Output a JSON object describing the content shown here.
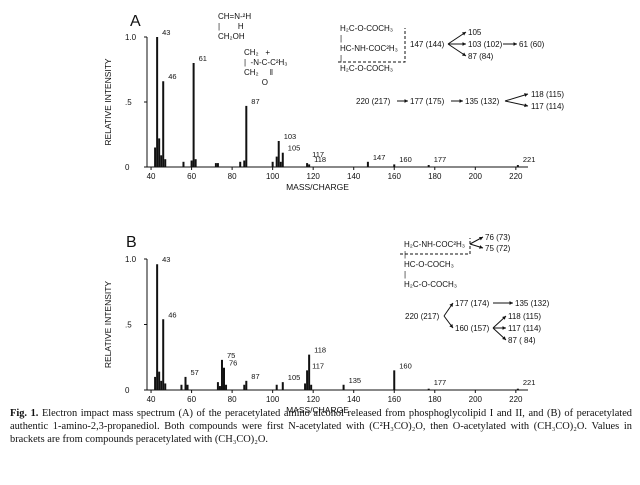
{
  "chart_data": [
    {
      "type": "bar",
      "panel_label": "A",
      "xlabel": "MASS/CHARGE",
      "ylabel": "RELATIVE INTENSITY",
      "xlim": [
        38,
        226
      ],
      "ylim": [
        0,
        1.0
      ],
      "x_ticks": [
        "40",
        "60",
        "80",
        "100",
        "120",
        "140",
        "160",
        "180",
        "200",
        "220"
      ],
      "y_ticks": [
        "0",
        ".5",
        "1.0"
      ],
      "peaks": [
        {
          "mz": 42,
          "intensity": 0.15
        },
        {
          "mz": 43,
          "intensity": 1.0
        },
        {
          "mz": 44,
          "intensity": 0.22
        },
        {
          "mz": 45,
          "intensity": 0.09
        },
        {
          "mz": 46,
          "intensity": 0.66
        },
        {
          "mz": 47,
          "intensity": 0.06
        },
        {
          "mz": 56,
          "intensity": 0.04
        },
        {
          "mz": 60,
          "intensity": 0.05
        },
        {
          "mz": 61,
          "intensity": 0.8
        },
        {
          "mz": 62,
          "intensity": 0.06
        },
        {
          "mz": 72,
          "intensity": 0.03
        },
        {
          "mz": 73,
          "intensity": 0.03
        },
        {
          "mz": 84,
          "intensity": 0.04
        },
        {
          "mz": 86,
          "intensity": 0.05
        },
        {
          "mz": 87,
          "intensity": 0.47
        },
        {
          "mz": 100,
          "intensity": 0.04
        },
        {
          "mz": 102,
          "intensity": 0.08
        },
        {
          "mz": 103,
          "intensity": 0.2
        },
        {
          "mz": 104,
          "intensity": 0.04
        },
        {
          "mz": 105,
          "intensity": 0.11
        },
        {
          "mz": 117,
          "intensity": 0.03
        },
        {
          "mz": 118,
          "intensity": 0.02
        },
        {
          "mz": 147,
          "intensity": 0.04
        },
        {
          "mz": 160,
          "intensity": 0.02
        },
        {
          "mz": 177,
          "intensity": 0.015
        },
        {
          "mz": 221,
          "intensity": 0.015
        }
      ],
      "peak_labels": [
        {
          "mz": 43,
          "intensity": 1.0,
          "text": "43"
        },
        {
          "mz": 46,
          "intensity": 0.66,
          "text": "46"
        },
        {
          "mz": 61,
          "intensity": 0.8,
          "text": "61"
        },
        {
          "mz": 87,
          "intensity": 0.47,
          "text": "87"
        },
        {
          "mz": 103,
          "intensity": 0.2,
          "text": "103"
        },
        {
          "mz": 105,
          "intensity": 0.11,
          "text": "105"
        },
        {
          "mz": 117,
          "intensity": 0.06,
          "text": "117"
        },
        {
          "mz": 118,
          "intensity": 0.02,
          "text": "118"
        },
        {
          "mz": 147,
          "intensity": 0.04,
          "text": "147"
        },
        {
          "mz": 160,
          "intensity": 0.02,
          "text": "160"
        },
        {
          "mz": 177,
          "intensity": 0.015,
          "text": "177"
        },
        {
          "mz": 221,
          "intensity": 0.015,
          "text": "221"
        }
      ]
    },
    {
      "type": "bar",
      "panel_label": "B",
      "xlabel": "MASS/CHARGE",
      "ylabel": "RELATIVE INTENSITY",
      "xlim": [
        38,
        226
      ],
      "ylim": [
        0,
        1.0
      ],
      "x_ticks": [
        "40",
        "60",
        "80",
        "100",
        "120",
        "140",
        "160",
        "180",
        "200",
        "220"
      ],
      "y_ticks": [
        "0",
        ".5",
        "1.0"
      ],
      "peaks": [
        {
          "mz": 42,
          "intensity": 0.1
        },
        {
          "mz": 43,
          "intensity": 0.96
        },
        {
          "mz": 44,
          "intensity": 0.14
        },
        {
          "mz": 45,
          "intensity": 0.07
        },
        {
          "mz": 46,
          "intensity": 0.54
        },
        {
          "mz": 47,
          "intensity": 0.05
        },
        {
          "mz": 55,
          "intensity": 0.04
        },
        {
          "mz": 57,
          "intensity": 0.1
        },
        {
          "mz": 58,
          "intensity": 0.04
        },
        {
          "mz": 73,
          "intensity": 0.06
        },
        {
          "mz": 74,
          "intensity": 0.03
        },
        {
          "mz": 75,
          "intensity": 0.23
        },
        {
          "mz": 76,
          "intensity": 0.17
        },
        {
          "mz": 77,
          "intensity": 0.04
        },
        {
          "mz": 86,
          "intensity": 0.04
        },
        {
          "mz": 87,
          "intensity": 0.07
        },
        {
          "mz": 102,
          "intensity": 0.04
        },
        {
          "mz": 105,
          "intensity": 0.06
        },
        {
          "mz": 116,
          "intensity": 0.05
        },
        {
          "mz": 117,
          "intensity": 0.15
        },
        {
          "mz": 118,
          "intensity": 0.27
        },
        {
          "mz": 119,
          "intensity": 0.04
        },
        {
          "mz": 135,
          "intensity": 0.04
        },
        {
          "mz": 160,
          "intensity": 0.15
        },
        {
          "mz": 177,
          "intensity": 0.01
        },
        {
          "mz": 221,
          "intensity": 0.01
        }
      ],
      "peak_labels": [
        {
          "mz": 43,
          "intensity": 0.96,
          "text": "43"
        },
        {
          "mz": 46,
          "intensity": 0.54,
          "text": "46"
        },
        {
          "mz": 57,
          "intensity": 0.1,
          "text": "57"
        },
        {
          "mz": 75,
          "intensity": 0.23,
          "text": "75"
        },
        {
          "mz": 76,
          "intensity": 0.17,
          "text": "76"
        },
        {
          "mz": 87,
          "intensity": 0.07,
          "text": "87"
        },
        {
          "mz": 105,
          "intensity": 0.06,
          "text": "105"
        },
        {
          "mz": 117,
          "intensity": 0.15,
          "text": "117"
        },
        {
          "mz": 118,
          "intensity": 0.27,
          "text": "118"
        },
        {
          "mz": 135,
          "intensity": 0.04,
          "text": "135"
        },
        {
          "mz": 160,
          "intensity": 0.15,
          "text": "160"
        },
        {
          "mz": 177,
          "intensity": 0.01,
          "text": "177"
        },
        {
          "mz": 221,
          "intensity": 0.01,
          "text": "221"
        }
      ]
    }
  ],
  "annotations": {
    "a_struct1": "CH=N‑²H\n|        H\nCH₂OH",
    "a_struct2": "CH₂   +\n|  ‑N‑C‑C²H₃\nCH₂     ‖\n        O",
    "a_struct3": "H₂C‑O‑COCH₃\n|\nHC‑NH‑COC²H₃\n|\nH₂C‑O‑COCH₃",
    "a_frag_147": "147 (144)",
    "a_frag_105": "105",
    "a_frag_103": "103 (102)",
    "a_frag_61": "61 (60)",
    "a_frag_87": "87 (84)",
    "a_frag_220": "220 (217)",
    "a_frag_177": "177 (175)",
    "a_frag_135": "135 (132)",
    "a_frag_118": "118 (115)",
    "a_frag_117": "117 (114)",
    "b_struct": "H₂C‑NH‑COC²H₃\n|\nHC‑O‑COCH₃\n|\nH₂C‑O‑COCH₃",
    "b_frag_76": "76 (73)",
    "b_frag_75": "75 (72)",
    "b_frag_220": "220 (217)",
    "b_frag_177": "177 (174)",
    "b_frag_135": "135 (132)",
    "b_frag_160": "160 (157)",
    "b_frag_118": "118 (115)",
    "b_frag_117": "117 (114)",
    "b_frag_87": "87 ( 84)"
  },
  "caption": {
    "fig_label": "Fig. 1.",
    "text": "Electron impact mass spectrum (A) of the peracetylated amino alcohol released from phosphoglycolipid I and II, and (B) of peracetylated authentic 1-amino-2,3-propanediol. Both compounds were first N-acetylated with (C²H₃CO)₂O, then O-acetylated with (CH₃CO)₂O. Values in brackets are from compounds peracetylated with (CH₃CO)₂O."
  },
  "colors": {
    "ink": "#111111",
    "background": "#ffffff"
  }
}
